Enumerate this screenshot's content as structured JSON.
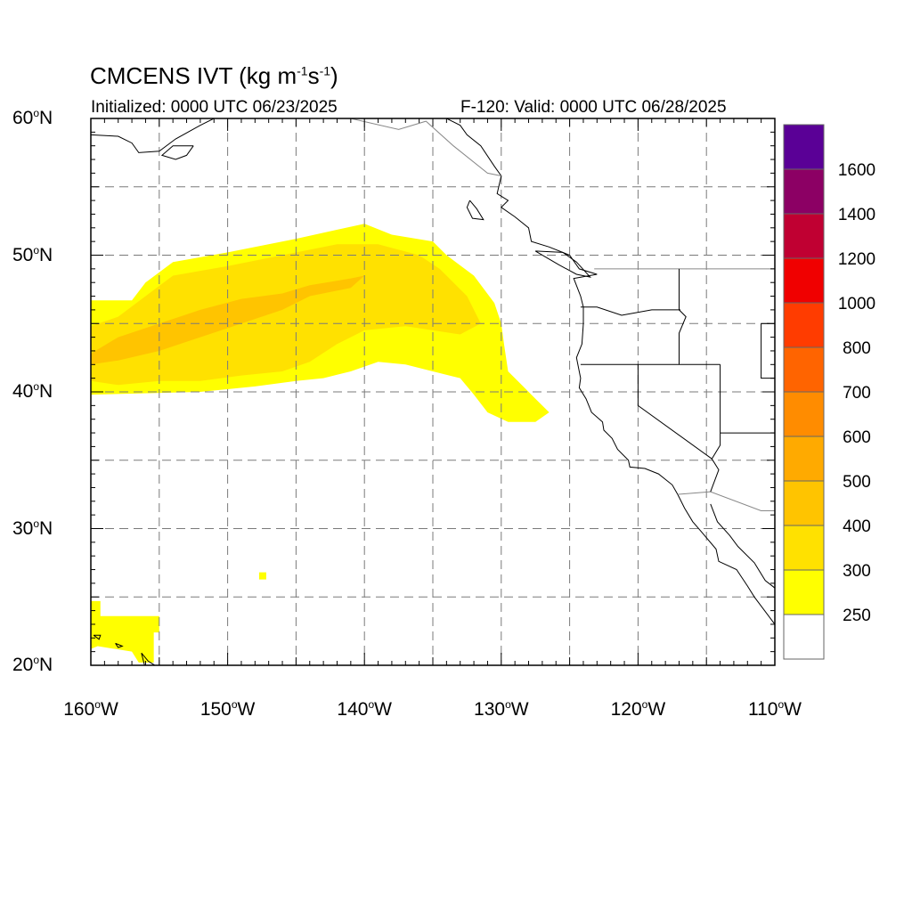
{
  "title": {
    "main": "CMCENS IVT (kg m",
    "sup1": "-1",
    "mid": "s",
    "sup2": "-1",
    "end": ")"
  },
  "subtitle_left": "Initialized: 0000 UTC 06/23/2025",
  "subtitle_right": "F-120: Valid: 0000 UTC 06/28/2025",
  "map": {
    "lon_range": [
      -160,
      -110
    ],
    "lat_range": [
      20,
      60
    ],
    "gridlines": true,
    "grid_style": "dashed"
  },
  "lat_labels": [
    {
      "deg": "60",
      "hem": "N",
      "value": 60
    },
    {
      "deg": "50",
      "hem": "N",
      "value": 50
    },
    {
      "deg": "40",
      "hem": "N",
      "value": 40
    },
    {
      "deg": "30",
      "hem": "N",
      "value": 30
    },
    {
      "deg": "20",
      "hem": "N",
      "value": 20
    }
  ],
  "lon_labels": [
    {
      "deg": "160",
      "hem": "W",
      "value": -160
    },
    {
      "deg": "150",
      "hem": "W",
      "value": -150
    },
    {
      "deg": "140",
      "hem": "W",
      "value": -140
    },
    {
      "deg": "130",
      "hem": "W",
      "value": -130
    },
    {
      "deg": "120",
      "hem": "W",
      "value": -120
    },
    {
      "deg": "110",
      "hem": "W",
      "value": -110
    }
  ],
  "colorbar": {
    "labels": [
      "250",
      "300",
      "400",
      "500",
      "600",
      "700",
      "800",
      "1000",
      "1200",
      "1400",
      "1600"
    ],
    "colors": [
      "#ffffff",
      "#ffff00",
      "#ffe100",
      "#ffc400",
      "#ffaa00",
      "#ff8c00",
      "#ff6400",
      "#ff3c00",
      "#f00000",
      "#c00032",
      "#8c0064",
      "#5a0096"
    ]
  },
  "ivt_regions": [
    {
      "level": 1,
      "color": "#ffff00",
      "outline": [
        [
          -160,
          46.7
        ],
        [
          -157,
          46.7
        ],
        [
          -156,
          48
        ],
        [
          -154,
          49.5
        ],
        [
          -150,
          50.2
        ],
        [
          -145,
          51.2
        ],
        [
          -140,
          52.3
        ],
        [
          -138,
          51.5
        ],
        [
          -135,
          51
        ],
        [
          -134,
          50
        ],
        [
          -132,
          48.5
        ],
        [
          -130.5,
          46.5
        ],
        [
          -130,
          45
        ],
        [
          -129.8,
          43.5
        ],
        [
          -129.5,
          41.5
        ],
        [
          -128.5,
          40.5
        ],
        [
          -127.5,
          39.5
        ],
        [
          -126.5,
          38.5
        ],
        [
          -127.5,
          37.8
        ],
        [
          -129.5,
          37.8
        ],
        [
          -131,
          38.5
        ],
        [
          -132,
          39.8
        ],
        [
          -133,
          41
        ],
        [
          -135,
          41.5
        ],
        [
          -137,
          42
        ],
        [
          -139,
          42.2
        ],
        [
          -141,
          41.5
        ],
        [
          -143,
          41
        ],
        [
          -145,
          40.8
        ],
        [
          -148,
          40.4
        ],
        [
          -152,
          40
        ],
        [
          -160,
          39.8
        ]
      ]
    },
    {
      "level": 2,
      "color": "#ffe100",
      "outline": [
        [
          -160,
          44.8
        ],
        [
          -158,
          45.5
        ],
        [
          -156,
          47
        ],
        [
          -154,
          48.5
        ],
        [
          -150,
          49.2
        ],
        [
          -146,
          50
        ],
        [
          -142,
          50.8
        ],
        [
          -139,
          50.8
        ],
        [
          -136,
          50
        ],
        [
          -134.5,
          49
        ],
        [
          -132.5,
          47
        ],
        [
          -131.5,
          45
        ],
        [
          -133,
          44.2
        ],
        [
          -135,
          44.5
        ],
        [
          -137,
          44.8
        ],
        [
          -140,
          44.5
        ],
        [
          -142,
          43.5
        ],
        [
          -144,
          42.2
        ],
        [
          -146,
          41.5
        ],
        [
          -149,
          41.2
        ],
        [
          -152,
          40.8
        ],
        [
          -155,
          40.8
        ],
        [
          -158,
          40.5
        ],
        [
          -160,
          40.8
        ]
      ]
    },
    {
      "level": 3,
      "color": "#ffc400",
      "outline": [
        [
          -160,
          42.8
        ],
        [
          -158,
          44
        ],
        [
          -155,
          45
        ],
        [
          -152,
          46
        ],
        [
          -149,
          46.8
        ],
        [
          -146,
          47.2
        ],
        [
          -144,
          47.8
        ],
        [
          -141,
          48.3
        ],
        [
          -140,
          48.5
        ],
        [
          -141,
          47.6
        ],
        [
          -144,
          47
        ],
        [
          -146,
          46
        ],
        [
          -149,
          45
        ],
        [
          -152,
          44
        ],
        [
          -155,
          43
        ],
        [
          -158,
          42.3
        ],
        [
          -160,
          42
        ]
      ]
    }
  ]
}
